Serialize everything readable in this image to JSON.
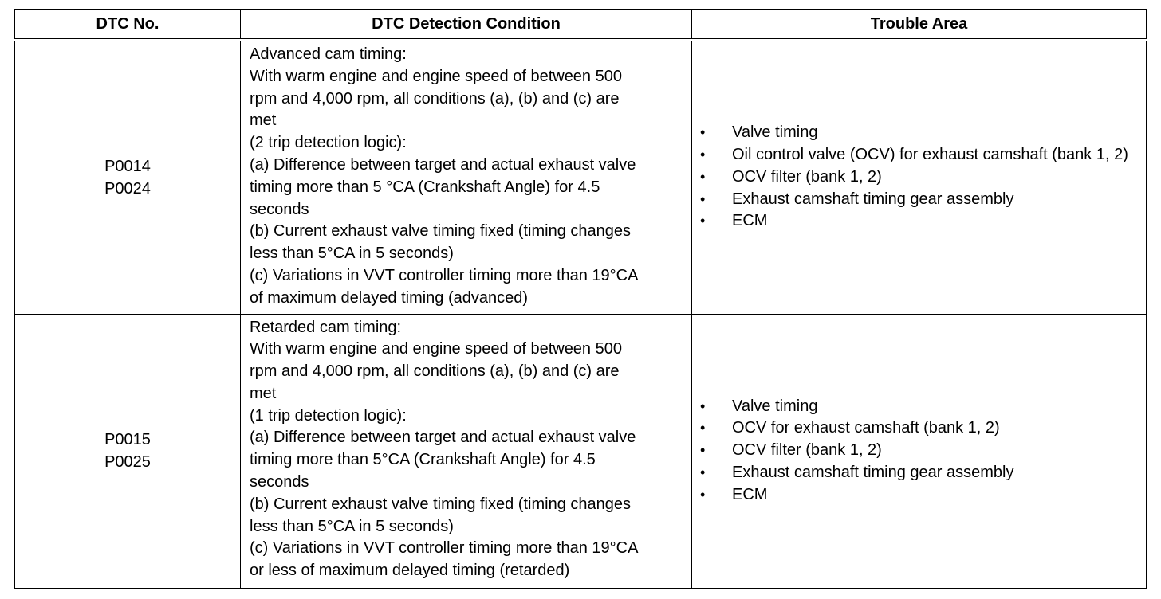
{
  "table": {
    "headers": [
      "DTC No.",
      "DTC Detection Condition",
      "Trouble Area"
    ],
    "rows": [
      {
        "codes": [
          "P0014",
          "P0024"
        ],
        "condition_lines": [
          "Advanced cam timing:",
          "With warm engine and engine speed of between 500",
          "rpm and 4,000 rpm, all conditions (a), (b) and (c) are",
          "met",
          "(2 trip detection logic):",
          "(a) Difference between target and actual exhaust valve",
          "timing more than 5 °CA (Crankshaft Angle) for 4.5",
          "seconds",
          "(b) Current exhaust valve timing fixed (timing changes",
          "less than 5°CA in 5 seconds)",
          "(c) Variations in VVT controller timing more than 19°CA",
          "of maximum delayed timing (advanced)"
        ],
        "trouble_areas": [
          "Valve timing",
          "Oil control valve (OCV) for exhaust camshaft (bank 1, 2)",
          "OCV filter (bank 1, 2)",
          "Exhaust camshaft timing gear assembly",
          "ECM"
        ]
      },
      {
        "codes": [
          "P0015",
          "P0025"
        ],
        "condition_lines": [
          "Retarded cam timing:",
          "With warm engine and engine speed of between 500",
          "rpm and 4,000 rpm, all conditions (a), (b) and (c) are",
          "met",
          "(1 trip detection logic):",
          "(a) Difference between target and actual exhaust valve",
          "timing more than 5°CA (Crankshaft Angle) for 4.5",
          "seconds",
          "(b) Current exhaust valve timing fixed (timing changes",
          "less than 5°CA in 5 seconds)",
          "(c) Variations in VVT controller timing more than 19°CA",
          "or less of maximum delayed timing (retarded)"
        ],
        "trouble_areas": [
          "Valve timing",
          "OCV for exhaust camshaft (bank 1, 2)",
          "OCV filter (bank 1, 2)",
          "Exhaust camshaft timing gear assembly",
          "ECM"
        ]
      }
    ],
    "bullet_glyph": "•"
  }
}
